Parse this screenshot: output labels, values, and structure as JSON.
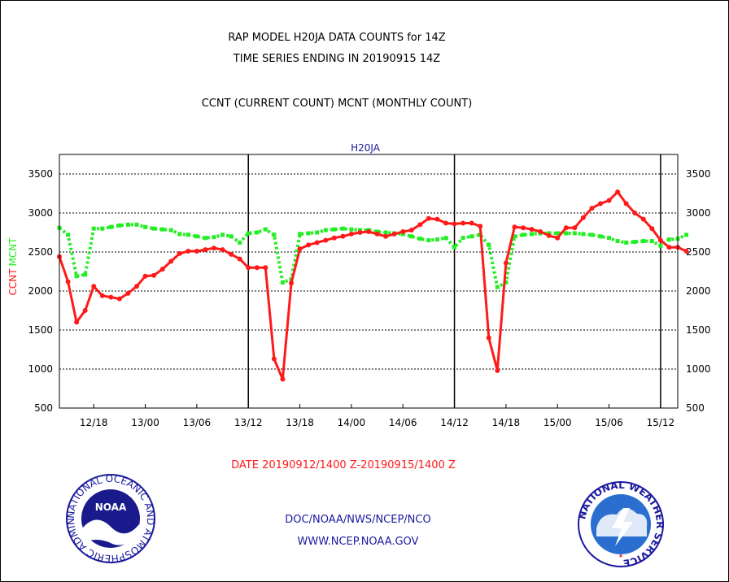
{
  "header": {
    "line1": "RAP MODEL H20JA DATA COUNTS for 14Z",
    "line2": "TIME SERIES ENDING IN 20190915 14Z",
    "line3": "CCNT (CURRENT COUNT) MCNT (MONTHLY COUNT)"
  },
  "footer": {
    "date_range": "DATE 20190912/1400 Z-20190915/1400 Z",
    "org": "DOC/NOAA/NWS/NCEP/NCO",
    "url": "WWW.NCEP.NOAA.GOV"
  },
  "logos": {
    "noaa_text": "NOAA",
    "noaa_ring": "NATIONAL OCEANIC AND ATMOSPHERIC ADMINISTRATION • U.S. DEPARTMENT OF COMMERCE •",
    "nws_ring": "NATIONAL WEATHER SERVICE"
  },
  "colors": {
    "ccnt": "#ff1a1a",
    "mcnt": "#22ee22",
    "title_blue": "#1a1aa0",
    "date_red": "#ff1a1a"
  },
  "chart_data": {
    "type": "line",
    "title": "H20JA",
    "ylabel_left": "CCNT",
    "ylabel_right": "MCNT",
    "ylim": [
      500,
      3750
    ],
    "yticks": [
      500,
      1000,
      1500,
      2000,
      2500,
      3000,
      3500
    ],
    "xlim": [
      0,
      72
    ],
    "xticks": [
      {
        "x": 4,
        "label": "12/18"
      },
      {
        "x": 10,
        "label": "13/00"
      },
      {
        "x": 16,
        "label": "13/06"
      },
      {
        "x": 22,
        "label": "13/12"
      },
      {
        "x": 28,
        "label": "13/18"
      },
      {
        "x": 34,
        "label": "14/00"
      },
      {
        "x": 40,
        "label": "14/06"
      },
      {
        "x": 46,
        "label": "14/12"
      },
      {
        "x": 52,
        "label": "14/18"
      },
      {
        "x": 58,
        "label": "15/00"
      },
      {
        "x": 64,
        "label": "15/06"
      },
      {
        "x": 70,
        "label": "15/12"
      }
    ],
    "day_boundaries": [
      22,
      46,
      70
    ],
    "grid": true,
    "series": [
      {
        "name": "CCNT",
        "values": [
          2440,
          2120,
          1600,
          1750,
          2060,
          1940,
          1920,
          1900,
          1970,
          2060,
          2190,
          2200,
          2280,
          2380,
          2480,
          2510,
          2510,
          2530,
          2550,
          2530,
          2470,
          2410,
          2300,
          2300,
          2300,
          1130,
          870,
          2100,
          2540,
          2590,
          2620,
          2650,
          2680,
          2700,
          2730,
          2750,
          2760,
          2730,
          2700,
          2730,
          2760,
          2780,
          2850,
          2930,
          2920,
          2870,
          2860,
          2870,
          2870,
          2830,
          1400,
          980,
          2360,
          2820,
          2810,
          2790,
          2760,
          2710,
          2680,
          2810,
          2810,
          2940,
          3060,
          3120,
          3160,
          3270,
          3120,
          3000,
          2920,
          2800,
          2650,
          2560,
          2560,
          2510
        ]
      },
      {
        "name": "MCNT",
        "values": [
          2810,
          2720,
          2190,
          2210,
          2800,
          2800,
          2820,
          2840,
          2850,
          2850,
          2820,
          2800,
          2790,
          2780,
          2730,
          2720,
          2700,
          2680,
          2690,
          2720,
          2700,
          2620,
          2740,
          2750,
          2790,
          2720,
          2110,
          2150,
          2730,
          2740,
          2750,
          2780,
          2790,
          2800,
          2790,
          2780,
          2780,
          2760,
          2750,
          2740,
          2730,
          2700,
          2670,
          2650,
          2660,
          2680,
          2560,
          2680,
          2700,
          2720,
          2590,
          2050,
          2110,
          2700,
          2720,
          2730,
          2740,
          2740,
          2740,
          2740,
          2740,
          2730,
          2720,
          2700,
          2680,
          2640,
          2620,
          2630,
          2640,
          2640,
          2580,
          2660,
          2670,
          2720
        ]
      }
    ]
  }
}
